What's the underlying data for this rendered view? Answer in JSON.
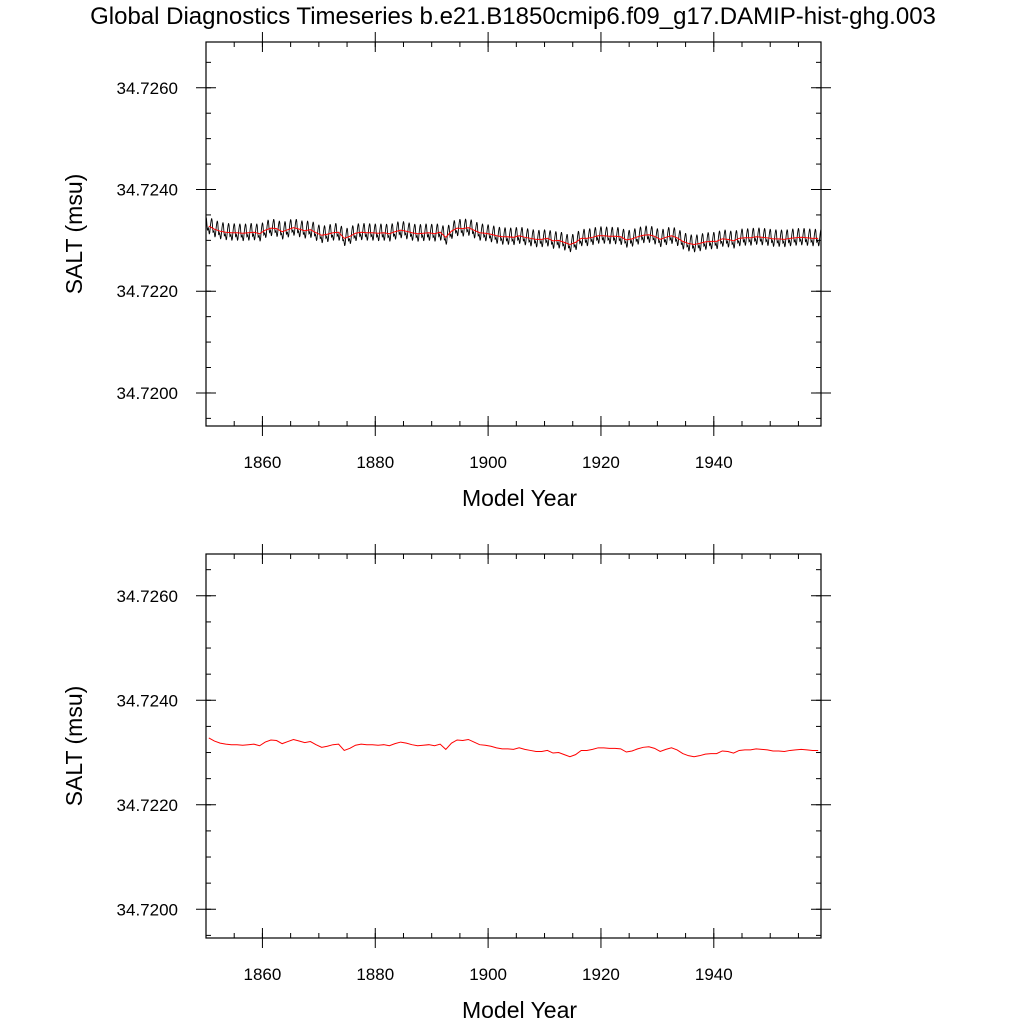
{
  "chart_data": {
    "title": "Global Diagnostics Timeseries b.e21.B1850cmip6.f09_g17.DAMIP-hist-ghg.003",
    "panels": [
      {
        "type": "line",
        "xlabel": "Model Year",
        "ylabel": "SALT (msu)",
        "xlim": [
          1850,
          1959
        ],
        "ylim": [
          34.71935,
          34.7269
        ],
        "xticks": [
          1860,
          1880,
          1900,
          1920,
          1940
        ],
        "yticks": [
          34.72,
          34.722,
          34.724,
          34.726
        ],
        "ytick_labels": [
          "34.7200",
          "34.7220",
          "34.7240",
          "34.7260"
        ],
        "series": [
          {
            "color": "#000000",
            "monthly_cycle_amplitude": 0.00025,
            "values_ref": "annual"
          },
          {
            "color": "#ff0000",
            "values_ref": "annual"
          }
        ]
      },
      {
        "type": "line",
        "xlabel": "Model Year",
        "ylabel": "SALT (msu)",
        "xlim": [
          1850,
          1959
        ],
        "ylim": [
          34.71945,
          34.7268
        ],
        "xticks": [
          1860,
          1880,
          1900,
          1920,
          1940
        ],
        "yticks": [
          34.72,
          34.722,
          34.724,
          34.726
        ],
        "ytick_labels": [
          "34.7200",
          "34.7220",
          "34.7240",
          "34.7260"
        ],
        "series": [
          {
            "color": "#ff0000",
            "values_ref": "annual"
          }
        ]
      }
    ],
    "annual": {
      "x_start": 1850.5,
      "x_step": 1,
      "values": [
        34.72328,
        34.72322,
        34.72318,
        34.72316,
        34.72315,
        34.72315,
        34.72314,
        34.72315,
        34.72316,
        34.72313,
        34.7232,
        34.72324,
        34.72323,
        34.72317,
        34.72321,
        34.72325,
        34.72322,
        34.72319,
        34.72321,
        34.72315,
        34.7231,
        34.72312,
        34.72315,
        34.72316,
        34.72304,
        34.72308,
        34.72314,
        34.72316,
        34.72315,
        34.72315,
        34.72314,
        34.72315,
        34.72313,
        34.72317,
        34.7232,
        34.72318,
        34.72315,
        34.72313,
        34.72314,
        34.72315,
        34.72313,
        34.72316,
        34.72306,
        34.72318,
        34.72324,
        34.72323,
        34.72325,
        34.7232,
        34.72315,
        34.72314,
        34.72312,
        34.72309,
        34.72307,
        34.72307,
        34.72306,
        34.72309,
        34.72306,
        34.72304,
        34.72302,
        34.72302,
        34.72304,
        34.72299,
        34.723,
        34.72296,
        34.72292,
        34.72296,
        34.72304,
        34.72304,
        34.72306,
        34.72309,
        34.72309,
        34.72308,
        34.72308,
        34.72307,
        34.72301,
        34.72303,
        34.72307,
        34.7231,
        34.72311,
        34.72308,
        34.72302,
        34.72306,
        34.72309,
        34.72305,
        34.72298,
        34.72294,
        34.72292,
        34.72294,
        34.72297,
        34.72298,
        34.72298,
        34.72303,
        34.72302,
        34.72299,
        34.72304,
        34.72305,
        34.72305,
        34.72307,
        34.72306,
        34.72305,
        34.72303,
        34.72303,
        34.72302,
        34.72304,
        34.72305,
        34.72306,
        34.72305,
        34.72304,
        34.72304
      ]
    }
  }
}
